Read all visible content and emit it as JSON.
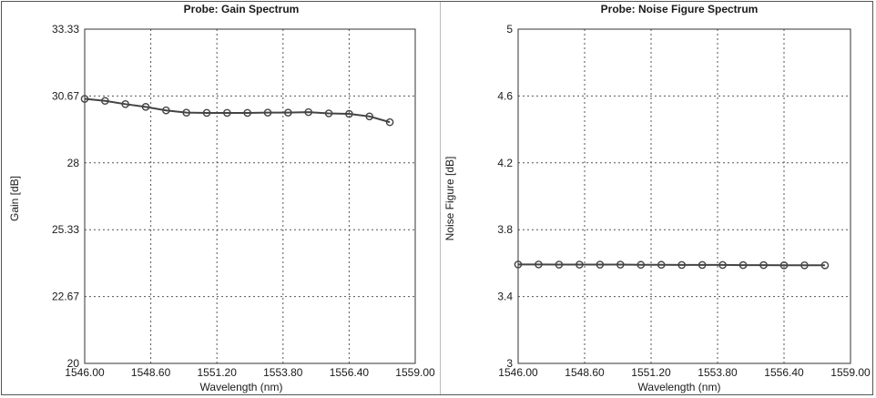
{
  "chart_data": [
    {
      "type": "line",
      "title": "Probe: Gain Spectrum",
      "xlabel": "Wavelength (nm)",
      "ylabel": "Gain [dB]",
      "xlim": [
        1546.0,
        1559.0
      ],
      "ylim": [
        20,
        33.33
      ],
      "x_ticks": [
        "1546.00",
        "1548.60",
        "1551.20",
        "1553.80",
        "1556.40",
        "1559.00"
      ],
      "y_ticks": [
        "20",
        "22.67",
        "25.33",
        "28",
        "30.67",
        "33.33"
      ],
      "grid": true,
      "marker": "circle",
      "line_color": "#444444",
      "series": [
        {
          "x": [
            1546.0,
            1546.8,
            1547.6,
            1548.4,
            1549.2,
            1550.0,
            1550.8,
            1551.6,
            1552.4,
            1553.2,
            1554.0,
            1554.8,
            1555.6,
            1556.4,
            1557.2,
            1558.0
          ],
          "values": [
            30.55,
            30.47,
            30.34,
            30.23,
            30.09,
            30.0,
            29.99,
            29.99,
            29.99,
            30.0,
            30.0,
            30.02,
            29.97,
            29.95,
            29.85,
            29.62
          ]
        }
      ]
    },
    {
      "type": "line",
      "title": "Probe: Noise Figure Spectrum",
      "xlabel": "Wavelength (nm)",
      "ylabel": "Noise Figure [dB]",
      "xlim": [
        1546.0,
        1559.0
      ],
      "ylim": [
        3,
        5
      ],
      "x_ticks": [
        "1546.00",
        "1548.60",
        "1551.20",
        "1553.80",
        "1556.40",
        "1559.00"
      ],
      "y_ticks": [
        "3",
        "3.4",
        "3.8",
        "4.2",
        "4.6",
        "5"
      ],
      "grid": true,
      "marker": "circle",
      "line_color": "#444444",
      "series": [
        {
          "x": [
            1546.0,
            1546.8,
            1547.6,
            1548.4,
            1549.2,
            1550.0,
            1550.8,
            1551.6,
            1552.4,
            1553.2,
            1554.0,
            1554.8,
            1555.6,
            1556.4,
            1557.2,
            1558.0
          ],
          "values": [
            3.592,
            3.592,
            3.591,
            3.591,
            3.591,
            3.591,
            3.59,
            3.59,
            3.589,
            3.589,
            3.589,
            3.588,
            3.588,
            3.587,
            3.587,
            3.587
          ]
        }
      ]
    }
  ]
}
